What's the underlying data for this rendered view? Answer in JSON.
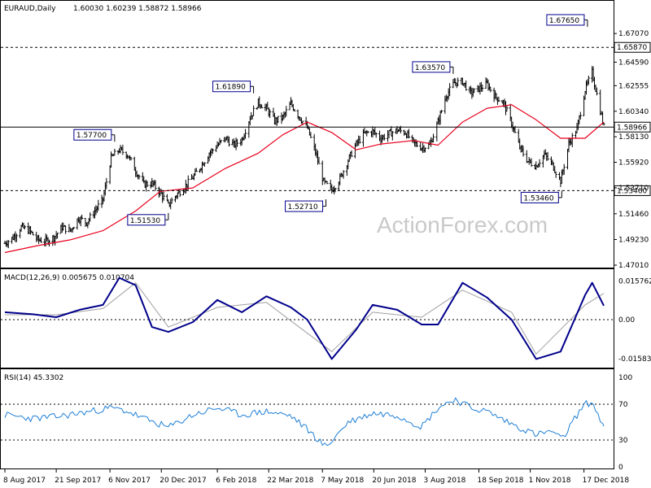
{
  "header": {
    "symbol": "EURAUD,Daily",
    "ohlc": "1.60030 1.60239 1.58872 1.58966"
  },
  "watermark": "ActionForex.com",
  "colors": {
    "price": "#000000",
    "ma": "#e8001c",
    "macd": "#00008b",
    "signal": "#a0a0a0",
    "rsi": "#1e7fd6",
    "grid": "#000000"
  },
  "x_axis": {
    "labels": [
      "8 Aug 2017",
      "21 Sep 2017",
      "6 Nov 2017",
      "20 Dec 2017",
      "6 Feb 2018",
      "22 Mar 2018",
      "7 May 2018",
      "20 Jun 2018",
      "3 Aug 2018",
      "18 Sep 2018",
      "1 Nov 2018",
      "17 Dec 2018"
    ]
  },
  "chart_data": [
    {
      "type": "candlestick-bars",
      "title": "EURAUD,Daily",
      "y_ticks": [
        "1.67070",
        "1.64590",
        "1.62555",
        "1.60340",
        "1.58130",
        "1.55920",
        "1.53710",
        "1.51460",
        "1.49230",
        "1.47010"
      ],
      "y_range": [
        1.4701,
        1.68
      ],
      "current_price": "1.58966",
      "levels": [
        {
          "value": 1.6587,
          "label": "1.65870",
          "style": "dashed"
        },
        {
          "value": 1.5346,
          "label": "1.53460",
          "style": "dashed"
        },
        {
          "value": 1.58966,
          "label": "1.58966",
          "style": "solid"
        }
      ],
      "annotations": [
        {
          "label": "1.57700",
          "value": 1.577,
          "date": "2017-11-10"
        },
        {
          "label": "1.51530",
          "value": 1.5153,
          "date": "2017-12-26"
        },
        {
          "label": "1.61890",
          "value": 1.6189,
          "date": "2018-03-09"
        },
        {
          "label": "1.52710",
          "value": 1.5271,
          "date": "2018-05-10"
        },
        {
          "label": "1.63570",
          "value": 1.6357,
          "date": "2018-08-27"
        },
        {
          "label": "1.53460",
          "value": 1.5346,
          "date": "2018-11-28"
        },
        {
          "label": "1.67650",
          "value": 1.6765,
          "date": "2018-12-20"
        }
      ],
      "close_path": [
        {
          "date": "2017-08-08",
          "value": 1.489
        },
        {
          "date": "2017-08-15",
          "value": 1.494
        },
        {
          "date": "2017-08-22",
          "value": 1.503
        },
        {
          "date": "2017-08-29",
          "value": 1.5
        },
        {
          "date": "2017-09-05",
          "value": 1.492
        },
        {
          "date": "2017-09-12",
          "value": 1.491
        },
        {
          "date": "2017-09-19",
          "value": 1.494
        },
        {
          "date": "2017-09-26",
          "value": 1.503
        },
        {
          "date": "2017-10-03",
          "value": 1.5
        },
        {
          "date": "2017-10-10",
          "value": 1.511
        },
        {
          "date": "2017-10-17",
          "value": 1.507
        },
        {
          "date": "2017-10-24",
          "value": 1.517
        },
        {
          "date": "2017-10-31",
          "value": 1.527
        },
        {
          "date": "2017-11-07",
          "value": 1.563
        },
        {
          "date": "2017-11-14",
          "value": 1.57
        },
        {
          "date": "2017-11-21",
          "value": 1.566
        },
        {
          "date": "2017-11-28",
          "value": 1.552
        },
        {
          "date": "2017-12-05",
          "value": 1.54
        },
        {
          "date": "2017-12-12",
          "value": 1.541
        },
        {
          "date": "2017-12-19",
          "value": 1.533
        },
        {
          "date": "2017-12-26",
          "value": 1.522
        },
        {
          "date": "2018-01-02",
          "value": 1.531
        },
        {
          "date": "2018-01-09",
          "value": 1.538
        },
        {
          "date": "2018-01-16",
          "value": 1.546
        },
        {
          "date": "2018-01-23",
          "value": 1.556
        },
        {
          "date": "2018-01-30",
          "value": 1.567
        },
        {
          "date": "2018-02-06",
          "value": 1.574
        },
        {
          "date": "2018-02-13",
          "value": 1.58
        },
        {
          "date": "2018-02-20",
          "value": 1.574
        },
        {
          "date": "2018-02-27",
          "value": 1.579
        },
        {
          "date": "2018-03-06",
          "value": 1.598
        },
        {
          "date": "2018-03-13",
          "value": 1.611
        },
        {
          "date": "2018-03-20",
          "value": 1.606
        },
        {
          "date": "2018-03-27",
          "value": 1.595
        },
        {
          "date": "2018-04-03",
          "value": 1.598
        },
        {
          "date": "2018-04-10",
          "value": 1.61
        },
        {
          "date": "2018-04-17",
          "value": 1.599
        },
        {
          "date": "2018-04-24",
          "value": 1.589
        },
        {
          "date": "2018-05-01",
          "value": 1.568
        },
        {
          "date": "2018-05-08",
          "value": 1.542
        },
        {
          "date": "2018-05-15",
          "value": 1.535
        },
        {
          "date": "2018-05-22",
          "value": 1.545
        },
        {
          "date": "2018-05-29",
          "value": 1.561
        },
        {
          "date": "2018-06-05",
          "value": 1.575
        },
        {
          "date": "2018-06-12",
          "value": 1.584
        },
        {
          "date": "2018-06-19",
          "value": 1.586
        },
        {
          "date": "2018-06-26",
          "value": 1.58
        },
        {
          "date": "2018-07-03",
          "value": 1.584
        },
        {
          "date": "2018-07-10",
          "value": 1.587
        },
        {
          "date": "2018-07-17",
          "value": 1.585
        },
        {
          "date": "2018-07-24",
          "value": 1.576
        },
        {
          "date": "2018-07-31",
          "value": 1.572
        },
        {
          "date": "2018-08-07",
          "value": 1.574
        },
        {
          "date": "2018-08-14",
          "value": 1.594
        },
        {
          "date": "2018-08-21",
          "value": 1.617
        },
        {
          "date": "2018-08-28",
          "value": 1.628
        },
        {
          "date": "2018-09-04",
          "value": 1.629
        },
        {
          "date": "2018-09-11",
          "value": 1.619
        },
        {
          "date": "2018-09-18",
          "value": 1.623
        },
        {
          "date": "2018-09-25",
          "value": 1.627
        },
        {
          "date": "2018-10-02",
          "value": 1.616
        },
        {
          "date": "2018-10-09",
          "value": 1.611
        },
        {
          "date": "2018-10-16",
          "value": 1.593
        },
        {
          "date": "2018-10-23",
          "value": 1.572
        },
        {
          "date": "2018-10-30",
          "value": 1.56
        },
        {
          "date": "2018-11-06",
          "value": 1.556
        },
        {
          "date": "2018-11-13",
          "value": 1.566
        },
        {
          "date": "2018-11-20",
          "value": 1.557
        },
        {
          "date": "2018-11-27",
          "value": 1.543
        },
        {
          "date": "2018-12-04",
          "value": 1.575
        },
        {
          "date": "2018-12-11",
          "value": 1.588
        },
        {
          "date": "2018-12-18",
          "value": 1.622
        },
        {
          "date": "2018-12-24",
          "value": 1.637
        },
        {
          "date": "2018-12-31",
          "value": 1.604
        },
        {
          "date": "2019-01-03",
          "value": 1.5897
        }
      ],
      "ma_path": [
        {
          "date": "2017-08-08",
          "value": 1.481
        },
        {
          "date": "2017-09-05",
          "value": 1.487
        },
        {
          "date": "2017-10-03",
          "value": 1.492
        },
        {
          "date": "2017-10-31",
          "value": 1.5
        },
        {
          "date": "2017-11-28",
          "value": 1.517
        },
        {
          "date": "2017-12-19",
          "value": 1.534
        },
        {
          "date": "2018-01-16",
          "value": 1.537
        },
        {
          "date": "2018-02-13",
          "value": 1.554
        },
        {
          "date": "2018-03-13",
          "value": 1.567
        },
        {
          "date": "2018-04-03",
          "value": 1.583
        },
        {
          "date": "2018-04-24",
          "value": 1.594
        },
        {
          "date": "2018-05-15",
          "value": 1.585
        },
        {
          "date": "2018-06-05",
          "value": 1.57
        },
        {
          "date": "2018-06-26",
          "value": 1.575
        },
        {
          "date": "2018-07-24",
          "value": 1.578
        },
        {
          "date": "2018-08-14",
          "value": 1.574
        },
        {
          "date": "2018-09-04",
          "value": 1.594
        },
        {
          "date": "2018-09-25",
          "value": 1.606
        },
        {
          "date": "2018-10-16",
          "value": 1.609
        },
        {
          "date": "2018-11-06",
          "value": 1.596
        },
        {
          "date": "2018-11-27",
          "value": 1.58
        },
        {
          "date": "2018-12-18",
          "value": 1.58
        },
        {
          "date": "2019-01-03",
          "value": 1.594
        }
      ]
    },
    {
      "type": "line",
      "title": "MACD(12,26,9) 0.005675 0.010704",
      "y_ticks": [
        "0.015762",
        "0.00",
        "-0.015834"
      ],
      "y_range": [
        -0.0182,
        0.0182
      ],
      "series": [
        {
          "name": "MACD",
          "values": [
            {
              "date": "2017-08-08",
              "value": 0.003
            },
            {
              "date": "2017-09-01",
              "value": 0.0022
            },
            {
              "date": "2017-09-21",
              "value": 0.001
            },
            {
              "date": "2017-10-11",
              "value": 0.004
            },
            {
              "date": "2017-10-31",
              "value": 0.006
            },
            {
              "date": "2017-11-14",
              "value": 0.017
            },
            {
              "date": "2017-11-28",
              "value": 0.014
            },
            {
              "date": "2017-12-12",
              "value": -0.003
            },
            {
              "date": "2017-12-26",
              "value": -0.005
            },
            {
              "date": "2018-01-16",
              "value": -0.001
            },
            {
              "date": "2018-02-06",
              "value": 0.008
            },
            {
              "date": "2018-02-27",
              "value": 0.003
            },
            {
              "date": "2018-03-20",
              "value": 0.0095
            },
            {
              "date": "2018-04-10",
              "value": 0.005
            },
            {
              "date": "2018-04-24",
              "value": 0.0
            },
            {
              "date": "2018-05-15",
              "value": -0.016
            },
            {
              "date": "2018-06-05",
              "value": -0.004
            },
            {
              "date": "2018-06-19",
              "value": 0.006
            },
            {
              "date": "2018-07-10",
              "value": 0.004
            },
            {
              "date": "2018-07-31",
              "value": -0.002
            },
            {
              "date": "2018-08-14",
              "value": -0.002
            },
            {
              "date": "2018-09-04",
              "value": 0.015
            },
            {
              "date": "2018-09-25",
              "value": 0.009
            },
            {
              "date": "2018-10-16",
              "value": 0.0
            },
            {
              "date": "2018-11-06",
              "value": -0.016
            },
            {
              "date": "2018-11-27",
              "value": -0.013
            },
            {
              "date": "2018-12-18",
              "value": 0.01
            },
            {
              "date": "2018-12-24",
              "value": 0.015
            },
            {
              "date": "2019-01-03",
              "value": 0.0057
            }
          ]
        },
        {
          "name": "Signal",
          "values": [
            {
              "date": "2017-08-08",
              "value": 0.002
            },
            {
              "date": "2017-09-21",
              "value": 0.002
            },
            {
              "date": "2017-10-31",
              "value": 0.0045
            },
            {
              "date": "2017-11-28",
              "value": 0.015
            },
            {
              "date": "2017-12-26",
              "value": -0.003
            },
            {
              "date": "2018-02-06",
              "value": 0.005
            },
            {
              "date": "2018-03-20",
              "value": 0.007
            },
            {
              "date": "2018-05-15",
              "value": -0.013
            },
            {
              "date": "2018-06-19",
              "value": 0.003
            },
            {
              "date": "2018-07-31",
              "value": 0.001
            },
            {
              "date": "2018-09-04",
              "value": 0.012
            },
            {
              "date": "2018-10-16",
              "value": 0.003
            },
            {
              "date": "2018-11-06",
              "value": -0.014
            },
            {
              "date": "2018-12-18",
              "value": 0.006
            },
            {
              "date": "2019-01-03",
              "value": 0.0107
            }
          ]
        }
      ]
    },
    {
      "type": "line",
      "title": "RSI(14) 45.3302",
      "y_ticks": [
        "100",
        "70",
        "30",
        "0"
      ],
      "y_range": [
        0,
        100
      ],
      "series": [
        {
          "name": "RSI",
          "values": [
            {
              "date": "2017-08-08",
              "value": 58
            },
            {
              "date": "2017-09-01",
              "value": 54
            },
            {
              "date": "2017-09-21",
              "value": 56
            },
            {
              "date": "2017-10-11",
              "value": 60
            },
            {
              "date": "2017-11-07",
              "value": 66
            },
            {
              "date": "2017-11-21",
              "value": 62
            },
            {
              "date": "2017-12-05",
              "value": 54
            },
            {
              "date": "2017-12-26",
              "value": 44
            },
            {
              "date": "2018-01-16",
              "value": 58
            },
            {
              "date": "2018-02-06",
              "value": 66
            },
            {
              "date": "2018-02-27",
              "value": 58
            },
            {
              "date": "2018-03-20",
              "value": 62
            },
            {
              "date": "2018-04-10",
              "value": 57
            },
            {
              "date": "2018-04-24",
              "value": 42
            },
            {
              "date": "2018-05-10",
              "value": 22
            },
            {
              "date": "2018-05-29",
              "value": 50
            },
            {
              "date": "2018-06-19",
              "value": 60
            },
            {
              "date": "2018-07-10",
              "value": 58
            },
            {
              "date": "2018-07-31",
              "value": 45
            },
            {
              "date": "2018-08-14",
              "value": 66
            },
            {
              "date": "2018-08-28",
              "value": 76
            },
            {
              "date": "2018-09-11",
              "value": 66
            },
            {
              "date": "2018-09-25",
              "value": 62
            },
            {
              "date": "2018-10-16",
              "value": 48
            },
            {
              "date": "2018-11-06",
              "value": 36
            },
            {
              "date": "2018-11-20",
              "value": 40
            },
            {
              "date": "2018-11-28",
              "value": 30
            },
            {
              "date": "2018-12-11",
              "value": 58
            },
            {
              "date": "2018-12-18",
              "value": 70
            },
            {
              "date": "2018-12-24",
              "value": 72
            },
            {
              "date": "2019-01-03",
              "value": 45.33
            }
          ]
        }
      ]
    }
  ]
}
